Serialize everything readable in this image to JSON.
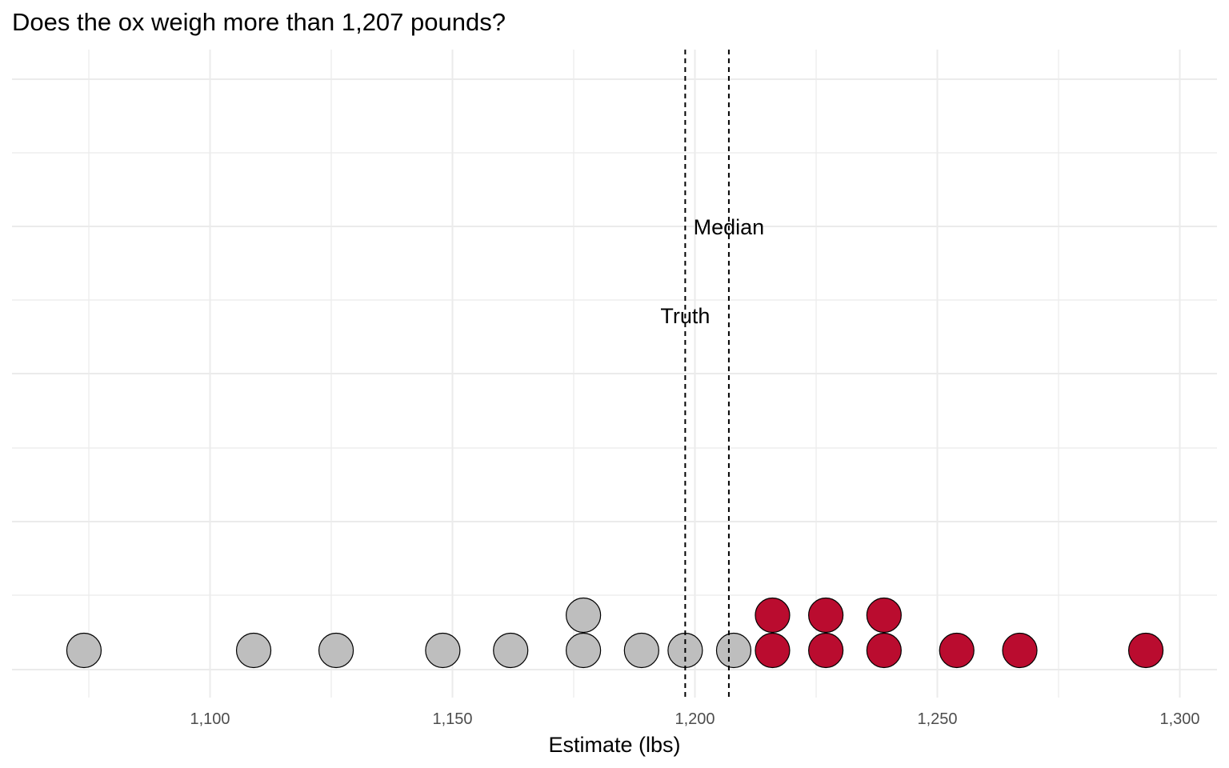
{
  "chart_data": {
    "type": "scatter",
    "subtype": "dotplot",
    "title": "Does the ox weigh more than 1,207 pounds?",
    "xlabel": "Estimate (lbs)",
    "ylabel": "",
    "xlim": [
      1060,
      1308
    ],
    "xticks": [
      1100,
      1150,
      1200,
      1250,
      1300
    ],
    "xtick_labels": [
      "1,100",
      "1,150",
      "1,200",
      "1,250",
      "1,300"
    ],
    "grid": true,
    "legend": "none",
    "colors": {
      "below": "#bebebe",
      "above": "#ba0c2f",
      "outline": "#000000",
      "grid": "#ebebeb"
    },
    "points": [
      {
        "x": 1074,
        "stack": 1,
        "group": "below"
      },
      {
        "x": 1109,
        "stack": 1,
        "group": "below"
      },
      {
        "x": 1126,
        "stack": 1,
        "group": "below"
      },
      {
        "x": 1148,
        "stack": 1,
        "group": "below"
      },
      {
        "x": 1162,
        "stack": 1,
        "group": "below"
      },
      {
        "x": 1177,
        "stack": 1,
        "group": "below"
      },
      {
        "x": 1177,
        "stack": 2,
        "group": "below"
      },
      {
        "x": 1189,
        "stack": 1,
        "group": "below"
      },
      {
        "x": 1198,
        "stack": 1,
        "group": "below"
      },
      {
        "x": 1208,
        "stack": 1,
        "group": "below"
      },
      {
        "x": 1216,
        "stack": 1,
        "group": "above"
      },
      {
        "x": 1216,
        "stack": 2,
        "group": "above"
      },
      {
        "x": 1227,
        "stack": 1,
        "group": "above"
      },
      {
        "x": 1227,
        "stack": 2,
        "group": "above"
      },
      {
        "x": 1239,
        "stack": 1,
        "group": "above"
      },
      {
        "x": 1239,
        "stack": 2,
        "group": "above"
      },
      {
        "x": 1254,
        "stack": 1,
        "group": "above"
      },
      {
        "x": 1267,
        "stack": 1,
        "group": "above"
      },
      {
        "x": 1293,
        "stack": 1,
        "group": "above"
      }
    ],
    "reference_lines": [
      {
        "label": "Truth",
        "x": 1198
      },
      {
        "label": "Median",
        "x": 1207
      }
    ]
  }
}
